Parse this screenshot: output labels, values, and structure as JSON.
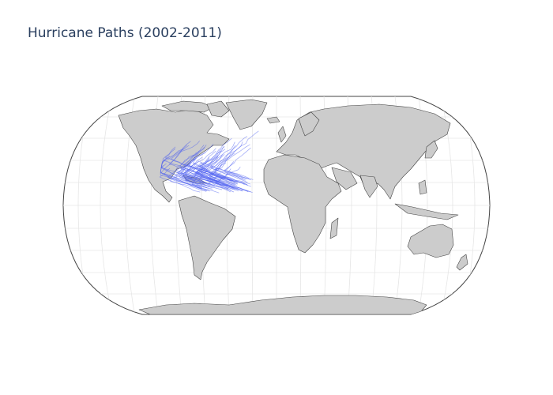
{
  "title": "Hurricane Paths (2002-2011)",
  "colors": {
    "land": "#cccccc",
    "coastline": "#444444",
    "ocean": "#ffffff",
    "track": "#4a5cf0",
    "title": "#2a3f5f"
  },
  "chart_data": {
    "type": "map",
    "projection": "natural earth",
    "title": "Hurricane Paths (2002-2011)",
    "series": [
      {
        "name": "Atlantic hurricane tracks",
        "mark": "line",
        "region": "North Atlantic basin, Caribbean and Gulf of Mexico",
        "lon_range": [
          -100,
          -15
        ],
        "lat_range": [
          10,
          62
        ]
      }
    ],
    "graticule": true
  }
}
